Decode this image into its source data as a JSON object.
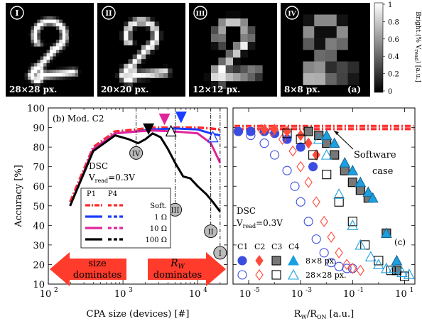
{
  "figure": {
    "panel_a_label": "(a)",
    "panel_b_label": "(b) Mod. C2",
    "panel_c_label": "(c)",
    "colorbar_label": "Bright.(% V",
    "colorbar_label_sub": "read",
    "colorbar_label_end": ") [a.u.]",
    "colorbar_ticks": [
      "1",
      "0.8",
      "0.6",
      "0.4",
      "0.2",
      "0"
    ],
    "digits": [
      {
        "roman": "I",
        "caption": "28×28 px.",
        "grid": 28
      },
      {
        "roman": "II",
        "caption": "20×20 px.",
        "grid": 20
      },
      {
        "roman": "III",
        "caption": "12×12 px.",
        "grid": 12
      },
      {
        "roman": "IV",
        "caption": "8×8 px.",
        "grid": 8
      }
    ],
    "colors": {
      "softmax": "#ff2a2a",
      "p1_1ohm": "#1a3cff",
      "p1_10ohm": "#e0249a",
      "p1_100ohm": "#000000",
      "c_circle": "#3a4de0",
      "c_diamond": "#ff4a3a",
      "c_square": "#000000",
      "c_triangle": "#1aa0e0",
      "software": "#ff2020",
      "arrow": "#ff3b2b"
    }
  },
  "chart_data": [
    {
      "type": "line",
      "xlabel": "CPA size (devices) [#]",
      "ylabel": "Accuracy [%]",
      "xscale": "log",
      "xlim": [
        100,
        25000
      ],
      "ylim": [
        10,
        100
      ],
      "xticks": [
        "10",
        "10",
        "10",
        "10"
      ],
      "xtick_exps": [
        "2",
        "3",
        "4",
        ""
      ],
      "yticks": [
        10,
        20,
        30,
        40,
        50,
        60,
        70,
        80,
        90,
        100
      ],
      "annotation_dsc": "DSC",
      "annotation_vread": "V",
      "annotation_vread_sub": "read",
      "annotation_vread_end": "=0.3V",
      "legend_header": [
        "P1",
        "P4"
      ],
      "series": [
        {
          "name": "Soft.",
          "key": "softmax",
          "dash": "dashdot",
          "x": [
            196,
            400,
            784,
            1500,
            2500,
            5000,
            10000,
            15000,
            20000
          ],
          "y": [
            52,
            80,
            88,
            89,
            90,
            90,
            90,
            89.5,
            89
          ]
        },
        {
          "name": "1 Ω",
          "key": "p1_1ohm",
          "dash": "solid",
          "x": [
            196,
            400,
            784,
            1500,
            2500,
            5000,
            10000,
            15000,
            20000
          ],
          "y": [
            50,
            79,
            87,
            88,
            89,
            89.5,
            89,
            87,
            86
          ]
        },
        {
          "name": "10 Ω",
          "key": "p1_10ohm",
          "dash": "solid",
          "x": [
            196,
            400,
            784,
            1500,
            2500,
            5000,
            10000,
            15000,
            20000
          ],
          "y": [
            50,
            79,
            87,
            88,
            88.5,
            88,
            87,
            82,
            72
          ]
        },
        {
          "name": "100 Ω",
          "key": "p1_100ohm",
          "dash": "solid",
          "x": [
            196,
            400,
            784,
            1200,
            1600,
            2000,
            2500,
            3200,
            4000,
            5000,
            6400,
            8000,
            10000,
            13000,
            16000,
            20000
          ],
          "y": [
            50,
            78,
            86,
            84,
            82,
            84,
            87,
            85,
            79,
            72,
            65,
            64,
            60,
            56,
            52,
            47
          ]
        }
      ],
      "size_markers": [
        {
          "roman": "IV",
          "x": 1500,
          "y": 77
        },
        {
          "roman": "III",
          "x": 5000,
          "y": 48
        },
        {
          "roman": "II",
          "x": 15000,
          "y": 37
        },
        {
          "roman": "I",
          "x": 20000,
          "y": 26
        }
      ],
      "arrow_left_text": [
        "size",
        "dominates"
      ],
      "arrow_right_text_1": "R",
      "arrow_right_text_sub": "W",
      "arrow_right_text_2": "dominates"
    },
    {
      "type": "scatter",
      "xlabel": "R",
      "xlabel_sub1": "W",
      "xlabel_mid": "/R",
      "xlabel_sub2": "ON",
      "xlabel_end": " [a.u.]",
      "xscale": "log",
      "xlim": [
        2.5e-06,
        25
      ],
      "ylim": [
        10,
        100
      ],
      "xticks": [
        "10",
        "10",
        "10",
        "10"
      ],
      "xtick_exps": [
        "-5",
        "-3",
        "-1",
        "1"
      ],
      "software_label": [
        "Software",
        "case"
      ],
      "software_level": 90,
      "annotation_dsc": "DSC",
      "annotation_vread": "V",
      "annotation_vread_sub": "read",
      "annotation_vread_end": "=0.3V",
      "legend_cols": [
        "C1",
        "C2",
        "C3",
        "C4"
      ],
      "legend_rows": [
        "8×8 px.",
        "28×28 px."
      ],
      "series": [
        {
          "name": "C1 8×8",
          "shape": "circle",
          "filled": true,
          "key": "c_circle",
          "x": [
            4e-06,
            1.2e-05,
            4e-05,
            0.0001,
            0.0003,
            0.001,
            0.003
          ],
          "y": [
            88,
            88,
            88,
            87,
            84,
            80,
            70
          ]
        },
        {
          "name": "C1 28×28",
          "shape": "circle",
          "filled": false,
          "key": "c_circle",
          "x": [
            4e-06,
            1.2e-05,
            4e-05,
            0.0001,
            0.0003,
            0.0006,
            0.001,
            0.002,
            0.004,
            0.008,
            0.015,
            0.03,
            0.06,
            0.1
          ],
          "y": [
            88,
            86,
            82,
            76,
            68,
            60,
            52,
            42,
            33,
            26,
            21,
            19,
            18,
            18
          ]
        },
        {
          "name": "C2 8×8",
          "shape": "diamond",
          "filled": true,
          "key": "c_diamond",
          "x": [
            4e-05,
            0.0001,
            0.0003,
            0.001,
            0.002,
            0.004
          ],
          "y": [
            89,
            89,
            88,
            86,
            82,
            76
          ]
        },
        {
          "name": "C2 28×28",
          "shape": "diamond",
          "filled": false,
          "key": "c_diamond",
          "x": [
            3e-05,
            8e-05,
            0.0002,
            0.0005,
            0.001,
            0.002,
            0.004,
            0.008,
            0.015,
            0.03,
            0.06,
            0.1,
            0.2
          ],
          "y": [
            89,
            88,
            84,
            78,
            70,
            62,
            52,
            42,
            34,
            26,
            20,
            18,
            17
          ]
        },
        {
          "name": "C3 8×8",
          "shape": "square",
          "filled": true,
          "key": "c_square",
          "x": [
            0.002,
            0.005,
            0.01,
            0.02,
            0.05,
            0.1,
            0.2,
            0.4,
            2,
            5
          ],
          "y": [
            88,
            86,
            82,
            76,
            68,
            62,
            58,
            54,
            36,
            17
          ]
        },
        {
          "name": "C3 28×28",
          "shape": "square",
          "filled": false,
          "key": "c_square",
          "x": [
            0.0003,
            0.001,
            0.003,
            0.01,
            0.03,
            0.1,
            0.3,
            1,
            3,
            10
          ],
          "y": [
            87,
            84,
            76,
            66,
            52,
            42,
            30,
            22,
            17,
            14
          ]
        },
        {
          "name": "C4 8×8",
          "shape": "triangle",
          "filled": true,
          "key": "c_triangle",
          "x": [
            0.01,
            0.02,
            0.05,
            0.1,
            0.2,
            0.4,
            0.6,
            2,
            5
          ],
          "y": [
            86,
            82,
            72,
            68,
            62,
            57,
            54,
            36,
            22
          ]
        },
        {
          "name": "C4 28×28",
          "shape": "triangle",
          "filled": false,
          "key": "c_triangle",
          "x": [
            0.005,
            0.01,
            0.03,
            0.1,
            0.2,
            0.5,
            1,
            2,
            4,
            8,
            15
          ],
          "y": [
            84,
            76,
            56,
            40,
            30,
            24,
            20,
            18,
            18,
            16,
            15
          ]
        }
      ]
    }
  ]
}
